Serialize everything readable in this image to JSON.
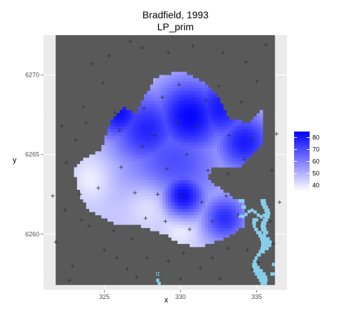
{
  "title_line1": "Bradfield, 1993",
  "title_line2": "LP_prim",
  "chart_data": {
    "type": "heatmap",
    "title": "Bradfield, 1993",
    "subtitle": "LP_prim",
    "xlabel": "x",
    "ylabel": "y",
    "xlim": [
      321,
      337
    ],
    "ylim": [
      6256.5,
      6272.5
    ],
    "x_ticks": [
      325,
      330,
      335
    ],
    "y_ticks": [
      6260,
      6265,
      6270
    ],
    "grid": true,
    "legend": {
      "placement": "right",
      "scale_labels": [
        40,
        50,
        60,
        70,
        80
      ],
      "range": [
        35,
        85
      ],
      "colors": {
        "low": "#ffffff",
        "high": "#0000ff"
      }
    },
    "colors": {
      "panel_bg": "#ebebeb",
      "raster_bg": "#595959",
      "grid": "#ffffff",
      "water": "#87ceeb",
      "marker": "#333333"
    },
    "markers": [
      [
        322.5,
        6264.5
      ],
      [
        323.4,
        6262.5
      ],
      [
        322.4,
        6261.5
      ],
      [
        321.8,
        6259.5
      ],
      [
        322.9,
        6258.0
      ],
      [
        323.6,
        6268.0
      ],
      [
        324.2,
        6270.7
      ],
      [
        324.9,
        6269.5
      ],
      [
        323.8,
        6267.0
      ],
      [
        324.6,
        6262.9
      ],
      [
        324.0,
        6260.5
      ],
      [
        323.5,
        6260.9
      ],
      [
        325.0,
        6259.0
      ],
      [
        325.8,
        6258.5
      ],
      [
        326.5,
        6257.8
      ],
      [
        325.6,
        6260.2
      ],
      [
        326.8,
        6259.7
      ],
      [
        327.8,
        6258.5
      ],
      [
        328.5,
        6257.5
      ],
      [
        329.2,
        6258.3
      ],
      [
        330.0,
        6257.2
      ],
      [
        331.3,
        6257.9
      ],
      [
        332.1,
        6258.5
      ],
      [
        333.1,
        6259.1
      ],
      [
        334.4,
        6259.0
      ],
      [
        335.1,
        6258.2
      ],
      [
        336.1,
        6259.4
      ],
      [
        336.5,
        6262.0
      ],
      [
        336.0,
        6264.0
      ],
      [
        336.3,
        6266.3
      ],
      [
        335.0,
        6269.6
      ],
      [
        334.3,
        6270.8
      ],
      [
        332.8,
        6271.4
      ],
      [
        330.8,
        6271.8
      ],
      [
        329.2,
        6271.4
      ],
      [
        327.5,
        6271.7
      ],
      [
        326.7,
        6272.1
      ],
      [
        325.3,
        6271.2
      ],
      [
        323.1,
        6265.9
      ],
      [
        322.2,
        6266.8
      ],
      [
        326.0,
        6266.5
      ],
      [
        327.6,
        6267.9
      ],
      [
        328.8,
        6268.6
      ],
      [
        329.8,
        6267.0
      ],
      [
        331.0,
        6266.8
      ],
      [
        331.7,
        6268.4
      ],
      [
        333.2,
        6266.2
      ],
      [
        334.7,
        6266.0
      ],
      [
        334.2,
        6264.7
      ],
      [
        333.1,
        6263.8
      ],
      [
        331.8,
        6264.0
      ],
      [
        330.4,
        6265.0
      ],
      [
        329.1,
        6264.1
      ],
      [
        327.5,
        6265.5
      ],
      [
        326.1,
        6264.2
      ],
      [
        327.0,
        6262.6
      ],
      [
        328.5,
        6262.5
      ],
      [
        330.1,
        6262.4
      ],
      [
        331.4,
        6262.0
      ],
      [
        333.0,
        6262.4
      ],
      [
        333.8,
        6261.2
      ],
      [
        332.1,
        6260.8
      ],
      [
        330.6,
        6260.3
      ],
      [
        329.0,
        6260.8
      ],
      [
        327.7,
        6261.0
      ],
      [
        325.7,
        6267.6
      ],
      [
        328.3,
        6266.2
      ],
      [
        329.9,
        6269.4
      ],
      [
        332.5,
        6269.3
      ],
      [
        334.0,
        6268.3
      ],
      [
        335.9,
        6260.8
      ],
      [
        334.7,
        6257.8
      ],
      [
        332.6,
        6257.2
      ],
      [
        330.2,
        6258.8
      ],
      [
        327.1,
        6257.3
      ],
      [
        322.7,
        6257.1
      ],
      [
        321.6,
        6262.4
      ],
      [
        335.6,
        6271.9
      ]
    ]
  }
}
